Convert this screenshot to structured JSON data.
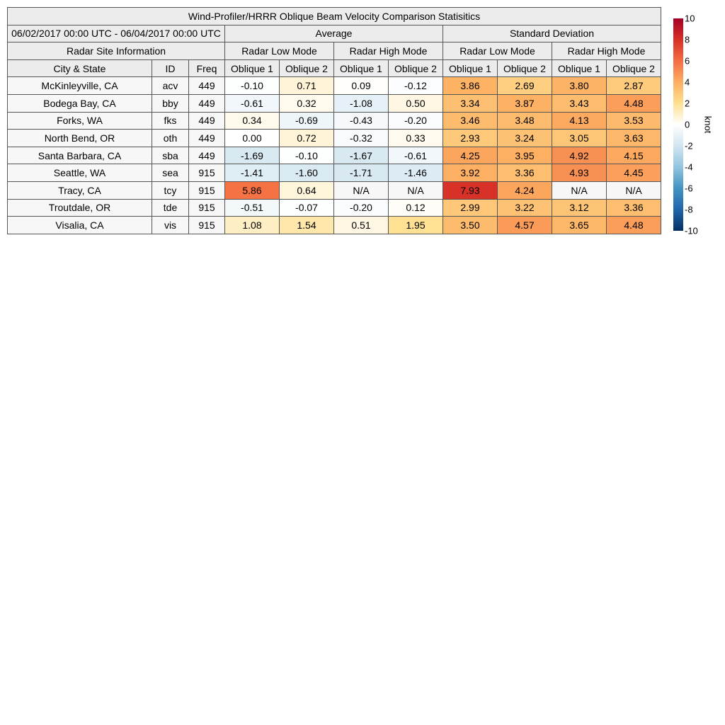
{
  "chart_data": {
    "type": "table",
    "title": "Wind-Profiler/HRRR Oblique Beam Velocity Comparison Statisitics",
    "date_range": "06/02/2017 00:00 UTC - 06/04/2017 00:00 UTC",
    "group_headers": [
      "Average",
      "Standard Deviation"
    ],
    "site_header": "Radar Site Information",
    "mode_headers": [
      "Radar Low Mode",
      "Radar High Mode",
      "Radar Low Mode",
      "Radar High Mode"
    ],
    "columns": [
      "City & State",
      "ID",
      "Freq",
      "Oblique 1",
      "Oblique 2",
      "Oblique 1",
      "Oblique 2",
      "Oblique 1",
      "Oblique 2",
      "Oblique 1",
      "Oblique 2"
    ],
    "rows": [
      {
        "city": "McKinleyville, CA",
        "id": "acv",
        "freq": "449",
        "values": [
          "-0.10",
          "0.71",
          "0.09",
          "-0.12",
          "3.86",
          "2.69",
          "3.80",
          "2.87"
        ]
      },
      {
        "city": "Bodega Bay, CA",
        "id": "bby",
        "freq": "449",
        "values": [
          "-0.61",
          "0.32",
          "-1.08",
          "0.50",
          "3.34",
          "3.87",
          "3.43",
          "4.48"
        ]
      },
      {
        "city": "Forks, WA",
        "id": "fks",
        "freq": "449",
        "values": [
          "0.34",
          "-0.69",
          "-0.43",
          "-0.20",
          "3.46",
          "3.48",
          "4.13",
          "3.53"
        ]
      },
      {
        "city": "North Bend, OR",
        "id": "oth",
        "freq": "449",
        "values": [
          "0.00",
          "0.72",
          "-0.32",
          "0.33",
          "2.93",
          "3.24",
          "3.05",
          "3.63"
        ]
      },
      {
        "city": "Santa Barbara, CA",
        "id": "sba",
        "freq": "449",
        "values": [
          "-1.69",
          "-0.10",
          "-1.67",
          "-0.61",
          "4.25",
          "3.95",
          "4.92",
          "4.15"
        ]
      },
      {
        "city": "Seattle, WA",
        "id": "sea",
        "freq": "915",
        "values": [
          "-1.41",
          "-1.60",
          "-1.71",
          "-1.46",
          "3.92",
          "3.36",
          "4.93",
          "4.45"
        ]
      },
      {
        "city": "Tracy, CA",
        "id": "tcy",
        "freq": "915",
        "values": [
          "5.86",
          "0.64",
          "N/A",
          "N/A",
          "7.93",
          "4.24",
          "N/A",
          "N/A"
        ]
      },
      {
        "city": "Troutdale, OR",
        "id": "tde",
        "freq": "915",
        "values": [
          "-0.51",
          "-0.07",
          "-0.20",
          "0.12",
          "2.99",
          "3.22",
          "3.12",
          "3.36"
        ]
      },
      {
        "city": "Visalia, CA",
        "id": "vis",
        "freq": "915",
        "values": [
          "1.08",
          "1.54",
          "0.51",
          "1.95",
          "3.50",
          "4.57",
          "3.65",
          "4.48"
        ]
      }
    ],
    "colorbar": {
      "label": "knot",
      "range": [
        -10,
        10
      ],
      "ticks": [
        "10",
        "8",
        "6",
        "4",
        "2",
        "0",
        "-2",
        "-4",
        "-6",
        "-8",
        "-10"
      ],
      "colors": [
        "#053061",
        "#2166ac",
        "#4393c3",
        "#92c5de",
        "#d1e5f0",
        "#ffffff",
        "#fee090",
        "#fdae61",
        "#f46d43",
        "#d73027",
        "#a50026"
      ]
    }
  }
}
